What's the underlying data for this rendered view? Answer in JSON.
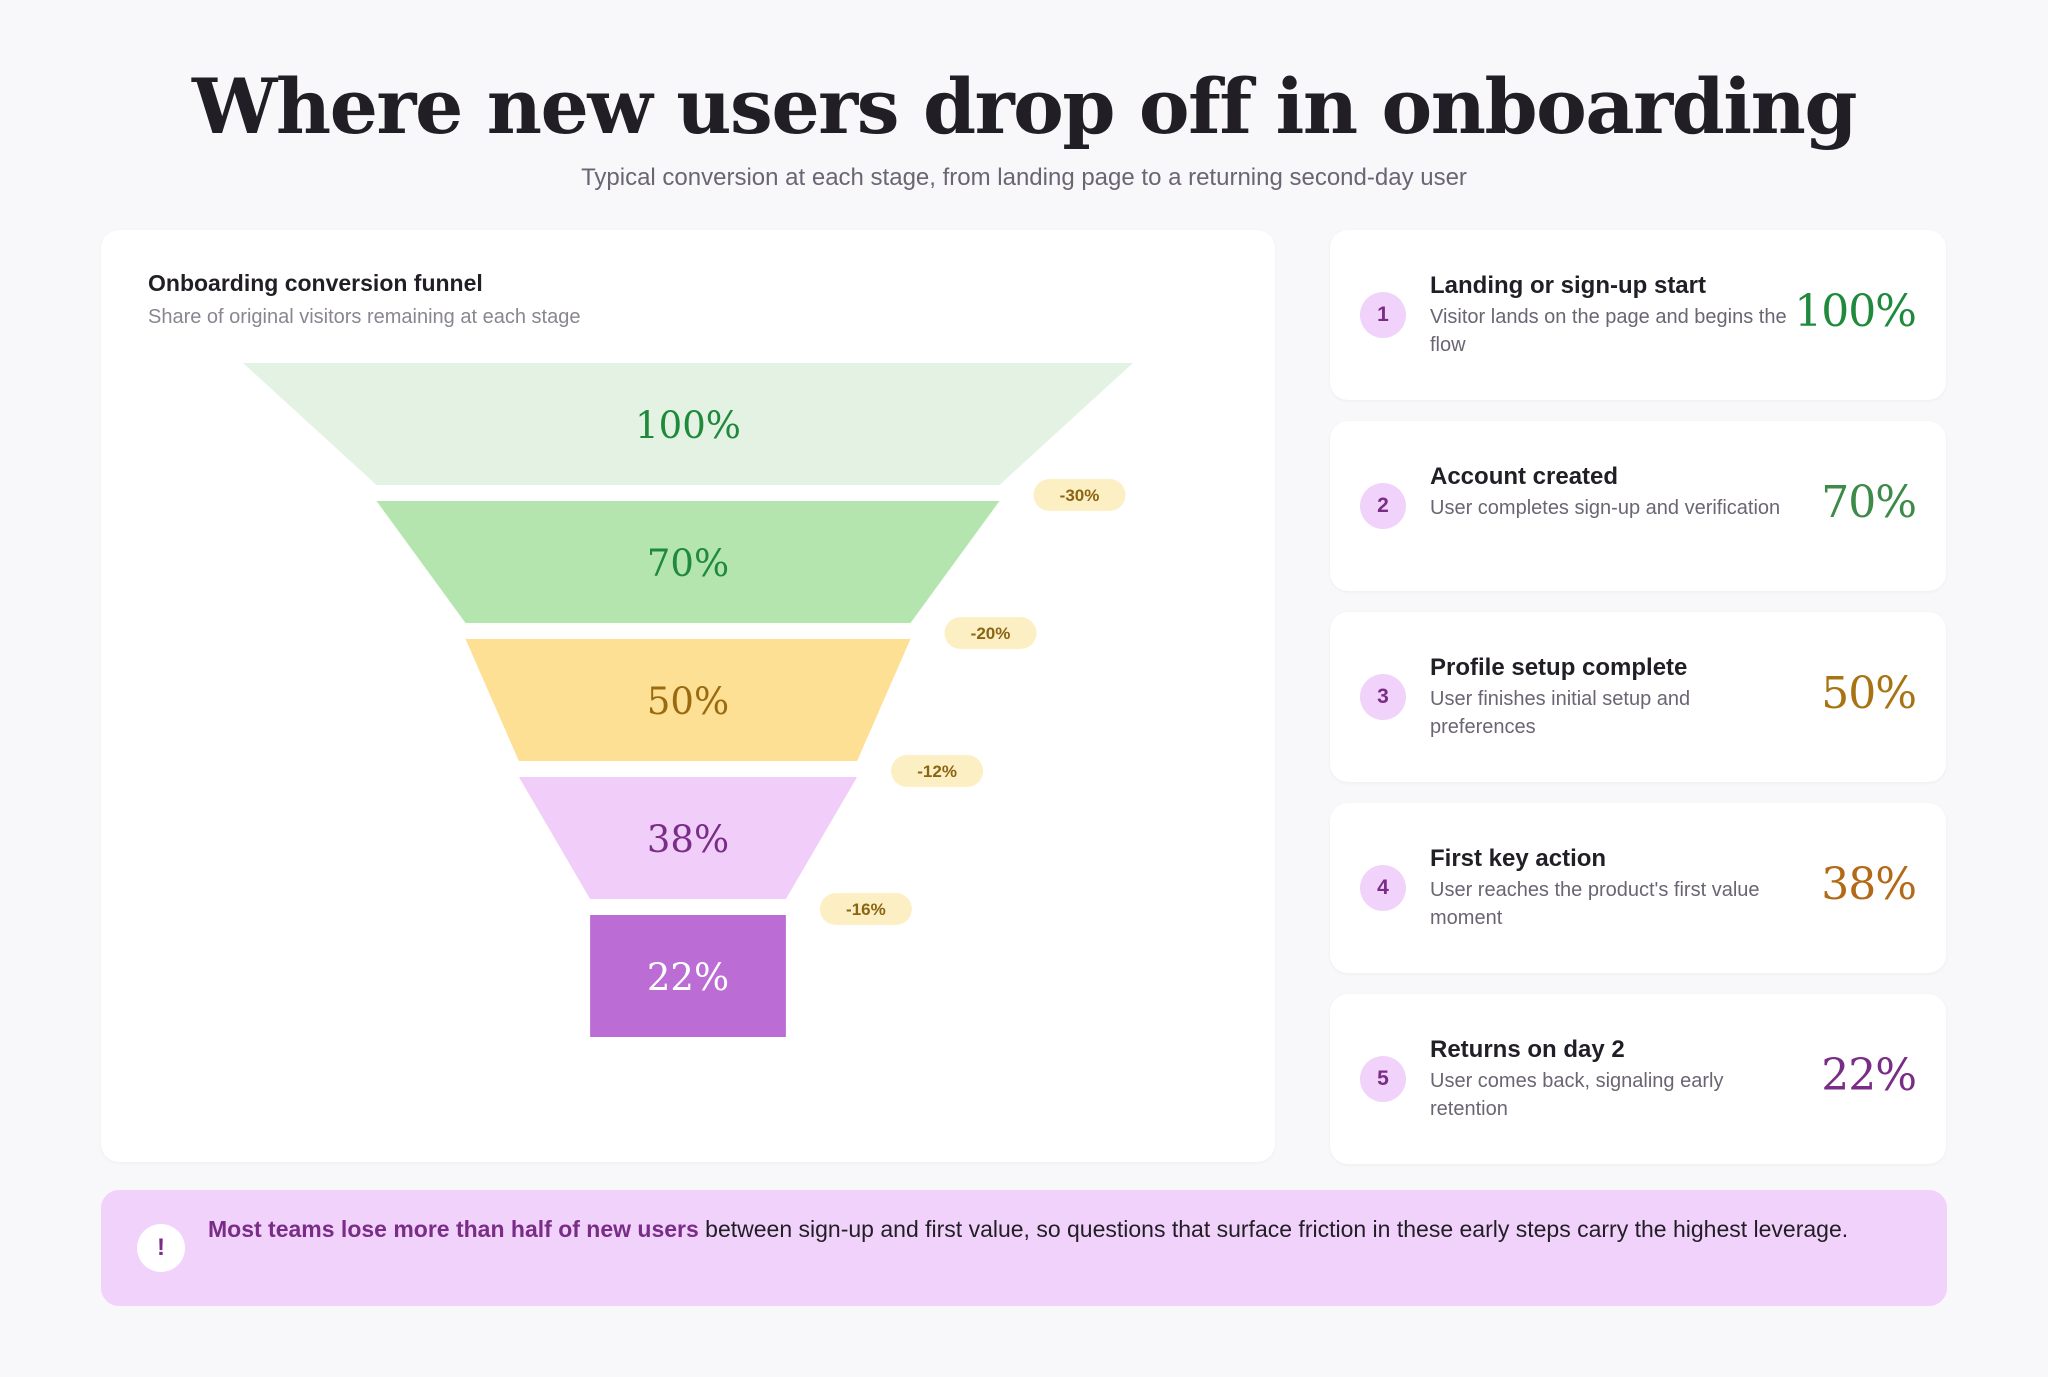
{
  "header": {
    "title": "Where new users drop off in onboarding",
    "subtitle": "Typical conversion at each stage, from landing page to a returning second-day user"
  },
  "chart_card": {
    "title": "Onboarding conversion funnel",
    "subtitle": "Share of original visitors remaining at each stage"
  },
  "chart_data": {
    "type": "funnel",
    "title": "Onboarding conversion funnel",
    "subtitle": "Share of original visitors remaining at each stage",
    "values": [
      100,
      70,
      50,
      38,
      22
    ],
    "value_labels": [
      "100%",
      "70%",
      "50%",
      "38%",
      "22%"
    ],
    "drops": [
      "-30%",
      "-20%",
      "-12%",
      "-16%"
    ],
    "fill_colors": [
      "#e4f2e3",
      "#b5e5ae",
      "#fde093",
      "#f1cdf9",
      "#bb6dd5"
    ],
    "label_colors": [
      "#1f8a3c",
      "#1f8a3c",
      "#9a6a10",
      "#7a2d87",
      "#ffffff"
    ]
  },
  "stages": [
    {
      "number": "1",
      "title": "Landing or sign-up start",
      "description": "Visitor lands on the page and begins the flow",
      "value": "100%",
      "color": "#1f8a3c"
    },
    {
      "number": "2",
      "title": "Account created",
      "description": "User completes sign-up and verification",
      "value": "70%",
      "color": "#3e8a48"
    },
    {
      "number": "3",
      "title": "Profile setup complete",
      "description": "User finishes initial setup and preferences",
      "value": "50%",
      "color": "#a87312"
    },
    {
      "number": "4",
      "title": "First key action",
      "description": "User reaches the product's first value moment",
      "value": "38%",
      "color": "#b36a18"
    },
    {
      "number": "5",
      "title": "Returns on day 2",
      "description": "User comes back, signaling early retention",
      "value": "22%",
      "color": "#7a2d87"
    }
  ],
  "callout": {
    "icon": "!",
    "highlight": "Most teams lose more than half of new users",
    "text": " between sign-up and first value, so questions that surface friction in these early steps carry the highest leverage."
  }
}
